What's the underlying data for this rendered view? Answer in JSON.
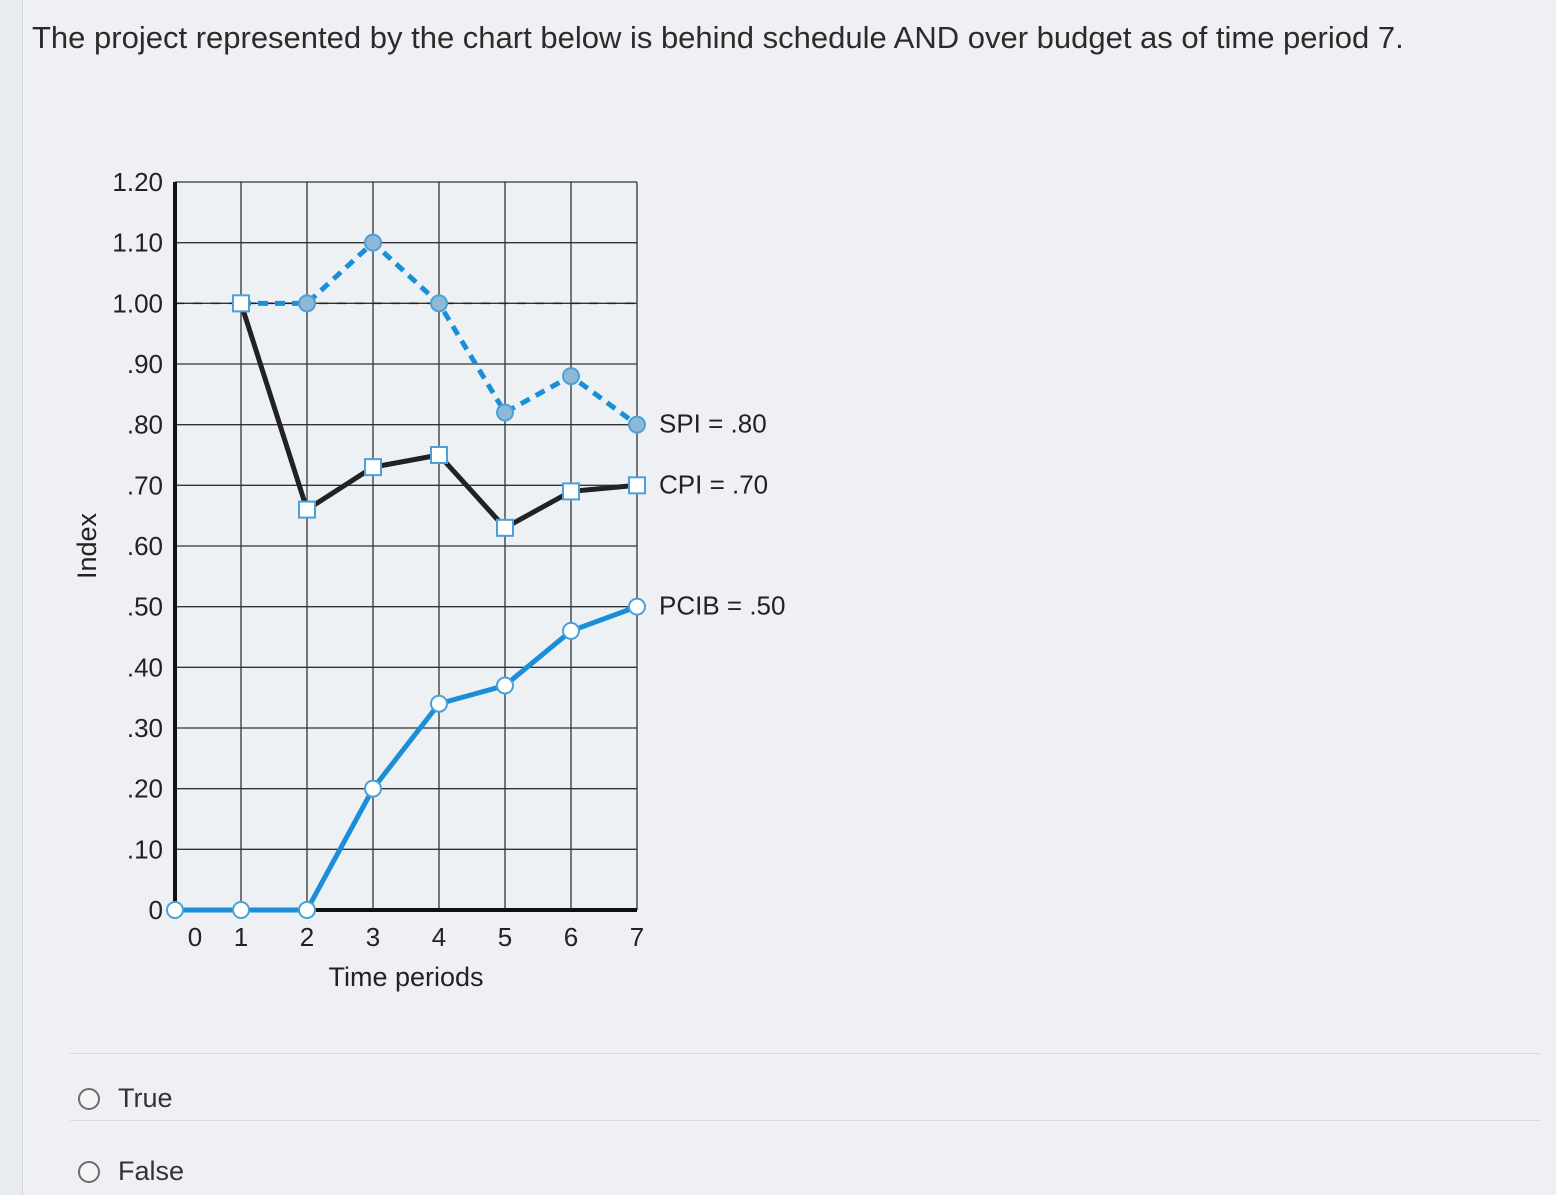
{
  "question": {
    "text": "The project represented by the chart below is behind schedule AND over budget as of time period 7."
  },
  "chart_data": {
    "type": "line",
    "xlabel": "Time periods",
    "ylabel": "Index",
    "xlim": [
      0,
      7
    ],
    "ylim": [
      0,
      1.2
    ],
    "x_ticks": [
      "0",
      "1",
      "2",
      "3",
      "4",
      "5",
      "6",
      "7"
    ],
    "y_ticks": [
      {
        "value": 0,
        "label": "0"
      },
      {
        "value": 0.1,
        "label": ".10"
      },
      {
        "value": 0.2,
        "label": ".20"
      },
      {
        "value": 0.3,
        "label": ".30"
      },
      {
        "value": 0.4,
        "label": ".40"
      },
      {
        "value": 0.5,
        "label": ".50"
      },
      {
        "value": 0.6,
        "label": ".60"
      },
      {
        "value": 0.7,
        "label": ".70"
      },
      {
        "value": 0.8,
        "label": ".80"
      },
      {
        "value": 0.9,
        "label": ".90"
      },
      {
        "value": 1.0,
        "label": "1.00"
      },
      {
        "value": 1.1,
        "label": "1.10"
      },
      {
        "value": 1.2,
        "label": "1.20"
      }
    ],
    "grid": true,
    "reference_line": {
      "y": 1.0,
      "style": "dashed"
    },
    "series": [
      {
        "name": "SPI",
        "label": "SPI  =  .80",
        "color": "#1a8fd8",
        "dash": true,
        "marker": "circle",
        "x": [
          1,
          2,
          3,
          4,
          5,
          6,
          7
        ],
        "y": [
          1.0,
          1.0,
          1.1,
          1.0,
          0.82,
          0.88,
          0.8
        ]
      },
      {
        "name": "CPI",
        "label": "CPI  =  .70",
        "color": "#222222",
        "dash": false,
        "marker": "square",
        "x": [
          1,
          2,
          3,
          4,
          5,
          6,
          7
        ],
        "y": [
          1.0,
          0.66,
          0.73,
          0.75,
          0.63,
          0.69,
          0.7
        ]
      },
      {
        "name": "PCIB",
        "label": "PCIB  =  .50",
        "color": "#1a8fd8",
        "dash": false,
        "marker": "circle",
        "x": [
          0,
          1,
          2,
          3,
          4,
          5,
          6,
          7
        ],
        "y": [
          0,
          0,
          0,
          0.2,
          0.34,
          0.37,
          0.46,
          0.5
        ]
      }
    ]
  },
  "answers": [
    {
      "label": "True"
    },
    {
      "label": "False"
    }
  ]
}
